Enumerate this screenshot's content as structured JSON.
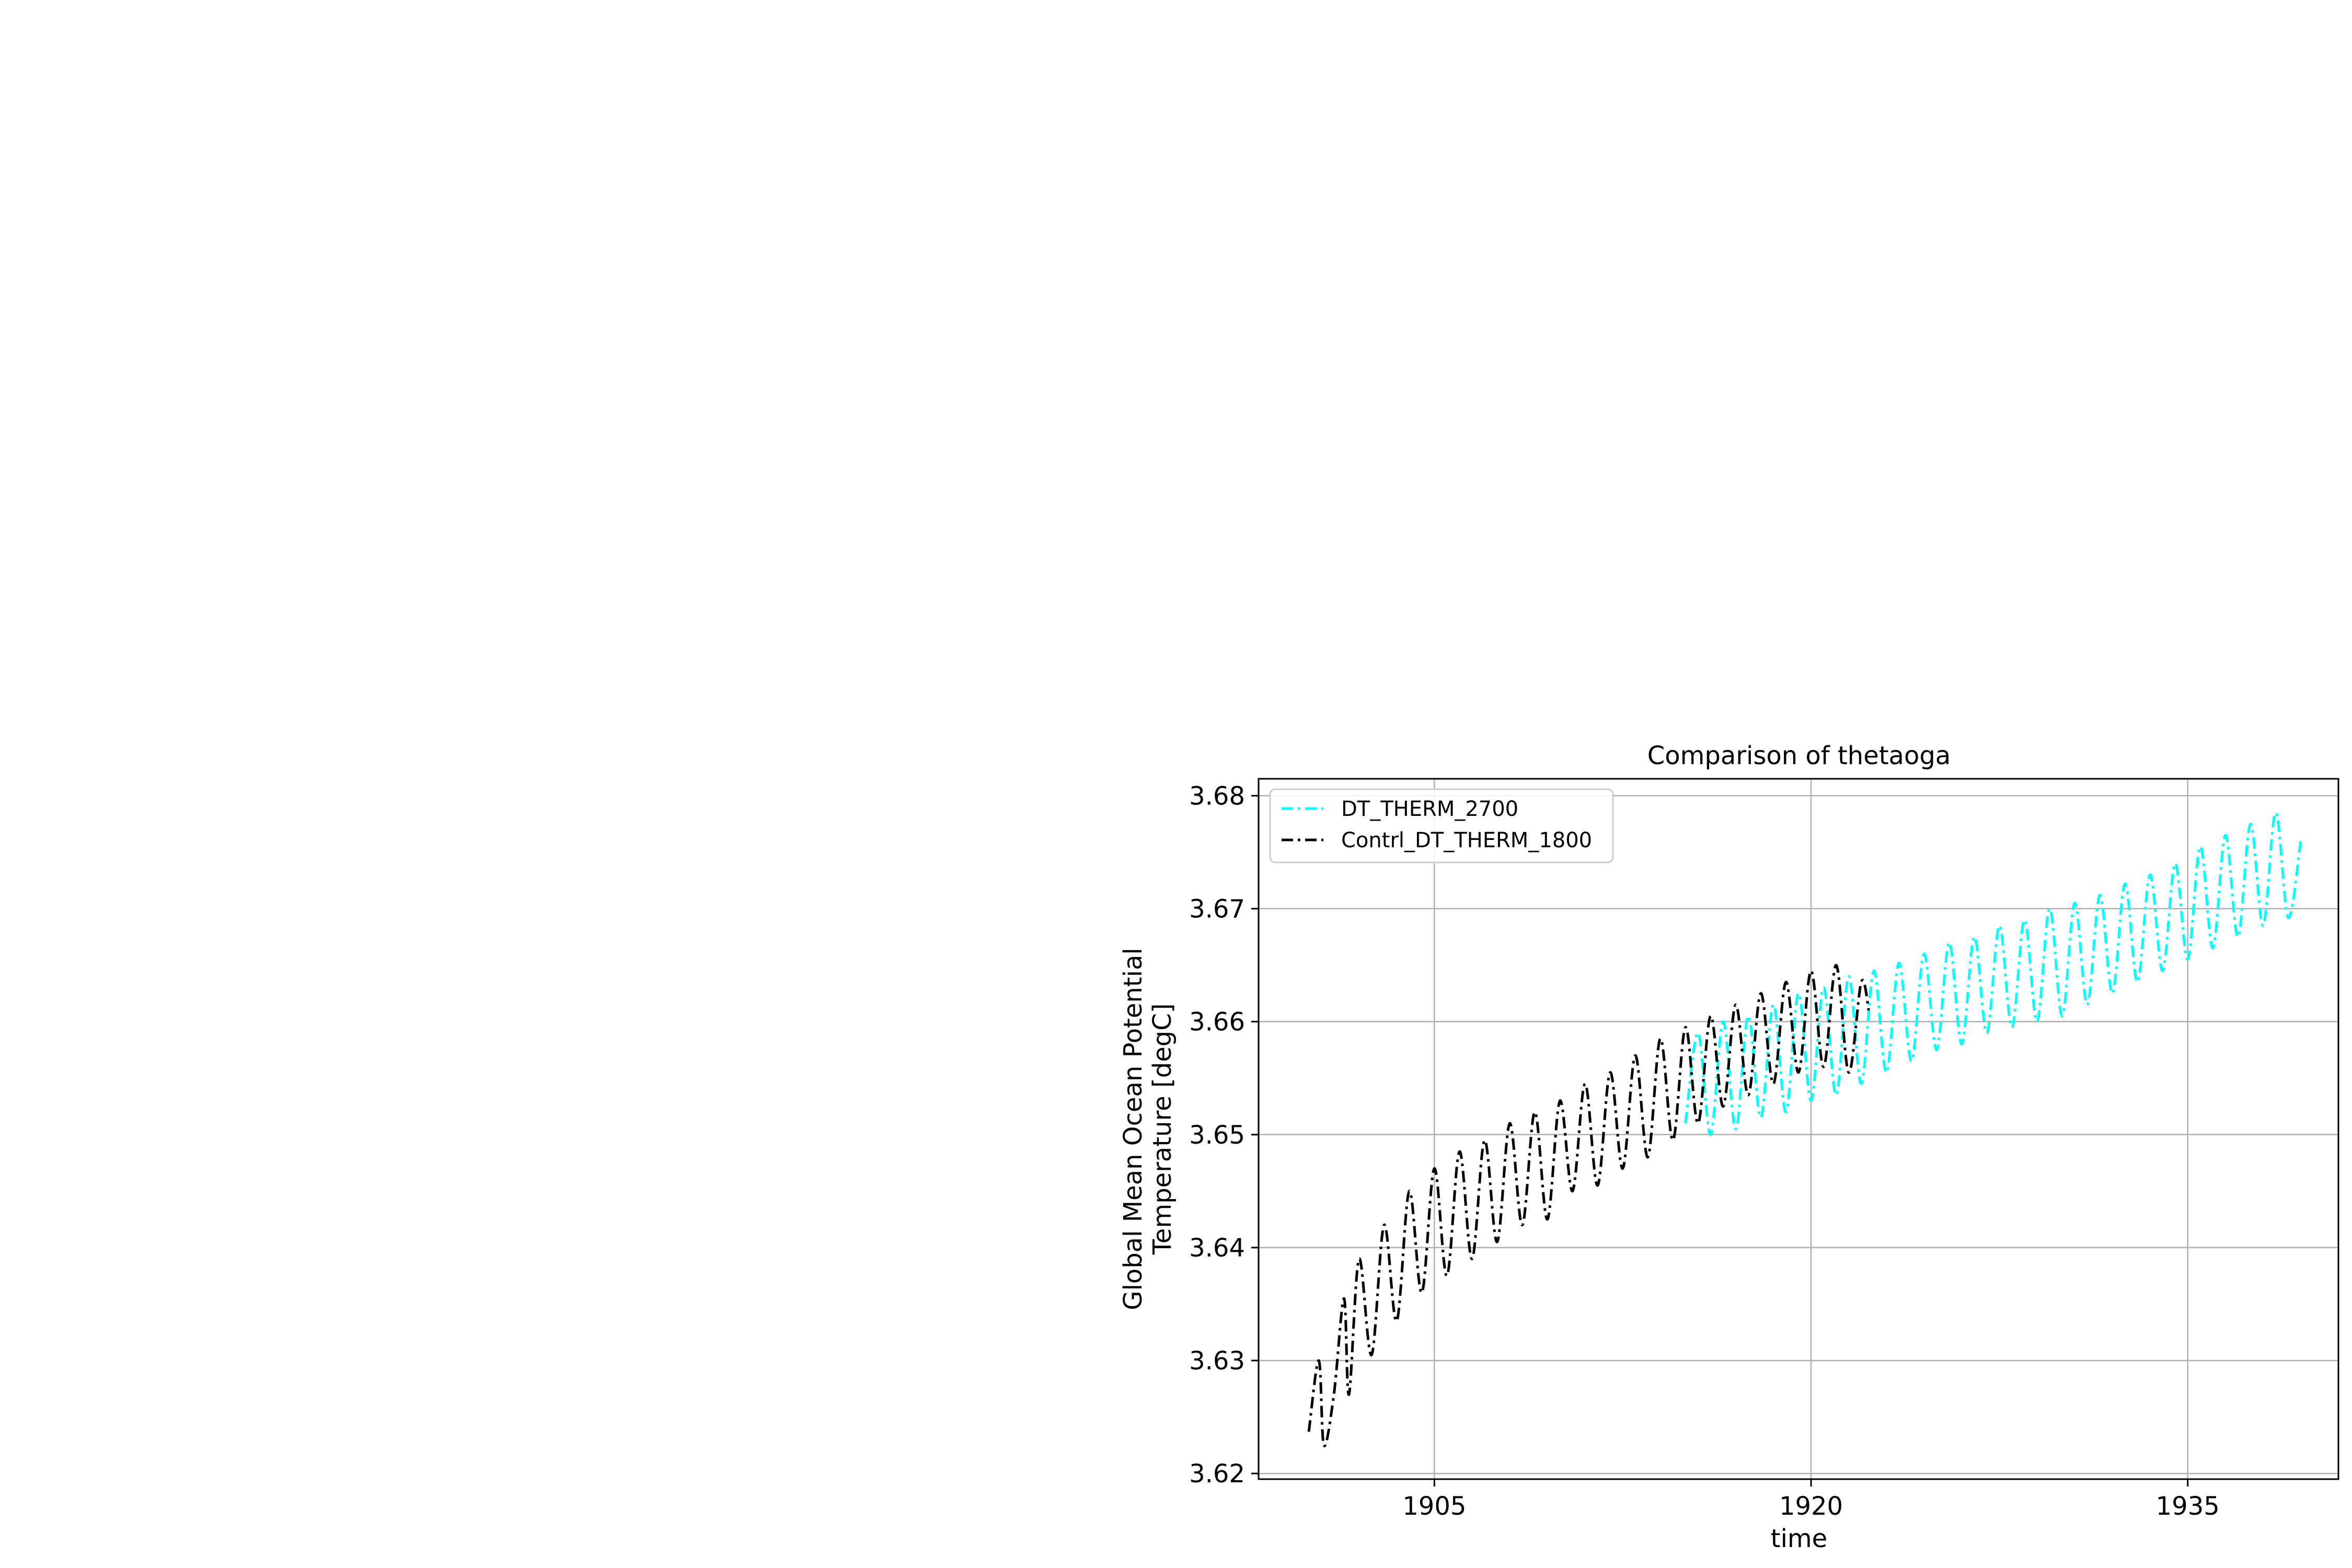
{
  "chart_data": {
    "type": "line",
    "title": "Comparison of thetaoga",
    "xlabel": "time",
    "ylabel_lines": [
      "Global Mean Ocean Potential",
      "Temperature [degC]"
    ],
    "xlim": [
      1898.0,
      1941.0
    ],
    "ylim": [
      3.6195,
      3.6815
    ],
    "x_ticks": [
      1905,
      1920,
      1935
    ],
    "y_ticks": [
      3.62,
      3.63,
      3.64,
      3.65,
      3.66,
      3.67,
      3.68
    ],
    "y_tick_labels": [
      "3.62",
      "3.63",
      "3.64",
      "3.65",
      "3.66",
      "3.67",
      "3.68"
    ],
    "grid": true,
    "legend": {
      "placement": "top-left"
    },
    "series": [
      {
        "name": "DT_THERM_2700",
        "color": "#00ffff",
        "linestyle": "dashdot",
        "x": [
          1915.0,
          1915.5,
          1916.0,
          1916.5,
          1917.0,
          1917.5,
          1918.0,
          1918.5,
          1919.0,
          1919.5,
          1920.0,
          1920.5,
          1921.0,
          1921.5,
          1922.0,
          1922.5,
          1923.0,
          1923.5,
          1924.0,
          1924.5,
          1925.0,
          1925.5,
          1926.0,
          1926.5,
          1927.0,
          1927.5,
          1928.0,
          1928.5,
          1929.0,
          1929.5,
          1930.0,
          1930.5,
          1931.0,
          1931.5,
          1932.0,
          1932.5,
          1933.0,
          1933.5,
          1934.0,
          1934.5,
          1935.0,
          1935.5,
          1936.0,
          1936.5,
          1937.0,
          1937.5,
          1938.0,
          1938.5,
          1939.0,
          1939.5
        ],
        "y": [
          3.651,
          3.659,
          3.65,
          3.66,
          3.6505,
          3.6605,
          3.6515,
          3.6615,
          3.652,
          3.6625,
          3.653,
          3.663,
          3.6535,
          3.664,
          3.6545,
          3.6645,
          3.6555,
          3.6652,
          3.6565,
          3.666,
          3.6575,
          3.667,
          3.658,
          3.6675,
          3.659,
          3.6685,
          3.6595,
          3.669,
          3.66,
          3.67,
          3.6605,
          3.6705,
          3.6615,
          3.6712,
          3.6625,
          3.6722,
          3.6635,
          3.673,
          3.6645,
          3.674,
          3.6655,
          3.6755,
          3.6665,
          3.6765,
          3.6675,
          3.6775,
          3.6685,
          3.6785,
          3.6692,
          3.676
        ]
      },
      {
        "name": "Contrl_DT_THERM_1800",
        "color": "#000000",
        "linestyle": "dashdot",
        "x": [
          1900.0,
          1900.4,
          1900.6,
          1901.0,
          1901.4,
          1901.6,
          1902.0,
          1902.5,
          1903.0,
          1903.5,
          1904.0,
          1904.5,
          1905.0,
          1905.5,
          1906.0,
          1906.5,
          1907.0,
          1907.5,
          1908.0,
          1908.5,
          1909.0,
          1909.5,
          1910.0,
          1910.5,
          1911.0,
          1911.5,
          1912.0,
          1912.5,
          1913.0,
          1913.5,
          1914.0,
          1914.5,
          1915.0,
          1915.5,
          1916.0,
          1916.5,
          1917.0,
          1917.5,
          1918.0,
          1918.5,
          1919.0,
          1919.5,
          1920.0,
          1920.5,
          1921.0,
          1921.5,
          1922.0,
          1922.3
        ],
        "y": [
          3.6237,
          3.63,
          3.6225,
          3.627,
          3.6355,
          3.627,
          3.639,
          3.6305,
          3.642,
          3.6335,
          3.645,
          3.636,
          3.647,
          3.6375,
          3.6485,
          3.639,
          3.6495,
          3.6405,
          3.651,
          3.642,
          3.652,
          3.6425,
          3.653,
          3.645,
          3.6545,
          3.6455,
          3.6555,
          3.647,
          3.657,
          3.648,
          3.6585,
          3.6495,
          3.6595,
          3.651,
          3.6605,
          3.6525,
          3.6615,
          3.6535,
          3.6625,
          3.6545,
          3.6635,
          3.6555,
          3.6645,
          3.656,
          3.665,
          3.6555,
          3.6635,
          3.661
        ]
      }
    ]
  }
}
